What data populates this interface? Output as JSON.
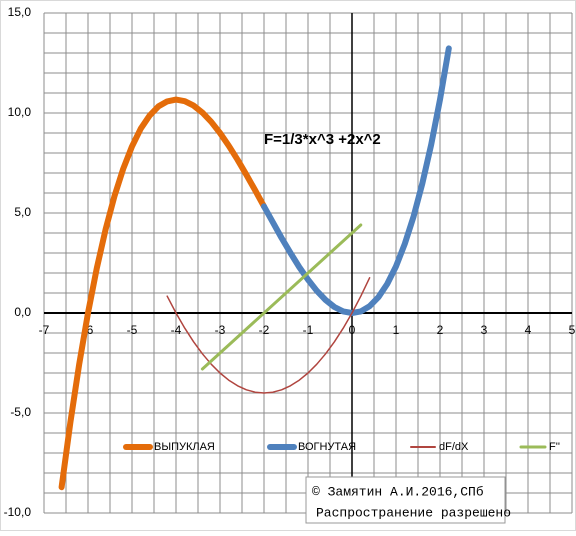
{
  "chart_data": {
    "type": "line",
    "title": "F=1/3*x^3 +2x^2",
    "annotations": [
      "© Замятин А.И.2016,СПб",
      "Распространение разрешено"
    ],
    "xlim": [
      -7,
      5
    ],
    "xticks": [
      -7,
      -6,
      -5,
      -4,
      -3,
      -2,
      -1,
      0,
      1,
      2,
      3,
      4,
      5
    ],
    "ylim": [
      -10,
      15
    ],
    "yticks": [
      {
        "value": -10,
        "label": "-10,0"
      },
      {
        "value": -5,
        "label": "-5,0"
      },
      {
        "value": 0,
        "label": "0,0"
      },
      {
        "value": 5,
        "label": "5,0"
      },
      {
        "value": 10,
        "label": "10,0"
      },
      {
        "value": 15,
        "label": "15,0"
      }
    ],
    "grid": true,
    "legend": "bottom",
    "series": [
      {
        "name": "ВЫПУКЛАЯ",
        "color": "#e46c0a",
        "x": [
          -6.6,
          -6.4,
          -6.2,
          -6.0,
          -5.8,
          -5.6,
          -5.4,
          -5.2,
          -5.0,
          -4.8,
          -4.6,
          -4.4,
          -4.2,
          -4.0,
          -3.8,
          -3.6,
          -3.4,
          -3.2,
          -3.0,
          -2.8,
          -2.6,
          -2.4,
          -2.2,
          -2.0
        ],
        "values": [
          -8.71,
          -5.46,
          -2.56,
          0,
          2.24,
          4.18,
          5.83,
          7.21,
          8.33,
          9.22,
          9.87,
          10.33,
          10.58,
          10.67,
          10.59,
          10.37,
          10.02,
          9.56,
          9,
          8.36,
          7.66,
          6.91,
          6.13,
          5.33
        ]
      },
      {
        "name": "ВОГНУТАЯ",
        "color": "#4f81bd",
        "x": [
          -2.0,
          -1.8,
          -1.6,
          -1.4,
          -1.2,
          -1.0,
          -0.8,
          -0.6,
          -0.4,
          -0.2,
          0,
          0.2,
          0.4,
          0.6,
          0.8,
          1.0,
          1.2,
          1.4,
          1.6,
          1.8,
          2.0,
          2.2
        ],
        "values": [
          5.33,
          4.54,
          3.75,
          3.01,
          2.3,
          1.67,
          1.11,
          0.65,
          0.3,
          0.08,
          0,
          0.08,
          0.34,
          0.79,
          1.45,
          2.33,
          3.46,
          4.83,
          6.49,
          8.42,
          10.67,
          13.23
        ]
      },
      {
        "name": "dF/dX",
        "color": "#b0453f",
        "x": [
          -4.2,
          -4.0,
          -3.8,
          -3.6,
          -3.4,
          -3.2,
          -3.0,
          -2.8,
          -2.6,
          -2.4,
          -2.2,
          -2.0,
          -1.8,
          -1.6,
          -1.4,
          -1.2,
          -1.0,
          -0.8,
          -0.6,
          -0.4,
          -0.2,
          0,
          0.2,
          0.4
        ],
        "values": [
          0.84,
          0,
          -0.76,
          -1.44,
          -2.04,
          -2.56,
          -3,
          -3.36,
          -3.64,
          -3.84,
          -3.96,
          -4,
          -3.96,
          -3.84,
          -3.64,
          -3.36,
          -3,
          -2.56,
          -2.04,
          -1.44,
          -0.76,
          0,
          0.84,
          1.76
        ]
      },
      {
        "name": "F''",
        "color": "#9bbb59",
        "x": [
          -3.4,
          0.2
        ],
        "values": [
          -2.8,
          4.4
        ]
      }
    ]
  }
}
